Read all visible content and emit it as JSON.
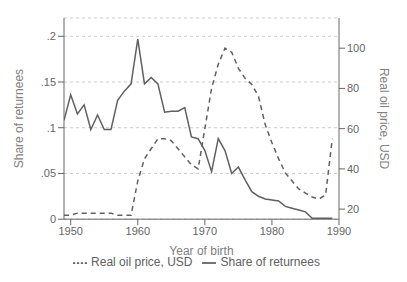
{
  "chart_data": {
    "type": "line",
    "xlabel": "Year of birth",
    "ylabel": "Share of returnees",
    "y2label": "Real oil price, USD",
    "x": [
      1949,
      1950,
      1951,
      1952,
      1953,
      1954,
      1955,
      1956,
      1957,
      1958,
      1959,
      1960,
      1961,
      1962,
      1963,
      1964,
      1965,
      1966,
      1967,
      1968,
      1969,
      1970,
      1971,
      1972,
      1973,
      1974,
      1975,
      1976,
      1977,
      1978,
      1979,
      1980,
      1981,
      1982,
      1983,
      1984,
      1985,
      1986,
      1987,
      1988,
      1989
    ],
    "series": [
      {
        "name": "Share of returnees",
        "color": "#606060",
        "line_style": "solid",
        "values": [
          0.108,
          0.136,
          0.115,
          0.125,
          0.098,
          0.114,
          0.098,
          0.098,
          0.13,
          0.14,
          0.148,
          0.197,
          0.148,
          0.155,
          0.148,
          0.117,
          0.118,
          0.118,
          0.122,
          0.09,
          0.088,
          0.075,
          0.052,
          0.088,
          0.075,
          0.05,
          0.057,
          0.043,
          0.03,
          0.025,
          0.022,
          0.021,
          0.02,
          0.014,
          0.012,
          0.01,
          0.008,
          0.001,
          0.001,
          0.001,
          0.001
        ]
      },
      {
        "name": "Real oil price, USD",
        "color": "#606060",
        "line_style": "dashed",
        "axis": "y2",
        "values": [
          17,
          17,
          18,
          18,
          18,
          18,
          18,
          18,
          17,
          17,
          17,
          34,
          45,
          50,
          55,
          55,
          54,
          50,
          46,
          42,
          40,
          60,
          80,
          92,
          100,
          98,
          90,
          85,
          82,
          76,
          62,
          53,
          45,
          38,
          34,
          30,
          28,
          26,
          25,
          27,
          55
        ]
      }
    ],
    "xlim": [
      1949,
      1990
    ],
    "xticks": [
      1950,
      1960,
      1970,
      1980,
      1990
    ],
    "ylim": [
      0,
      0.22
    ],
    "yticks": [
      0,
      {
        "value": 0.05,
        "label": ".05"
      },
      {
        "value": 0.1,
        "label": ".1"
      },
      {
        "value": 0.15,
        "label": ".15"
      },
      {
        "value": 0.2,
        "label": ".2"
      }
    ],
    "y2lim": [
      15,
      115
    ],
    "y2ticks": [
      20,
      40,
      60,
      80,
      100
    ],
    "grid": true,
    "legend": "bottom"
  }
}
